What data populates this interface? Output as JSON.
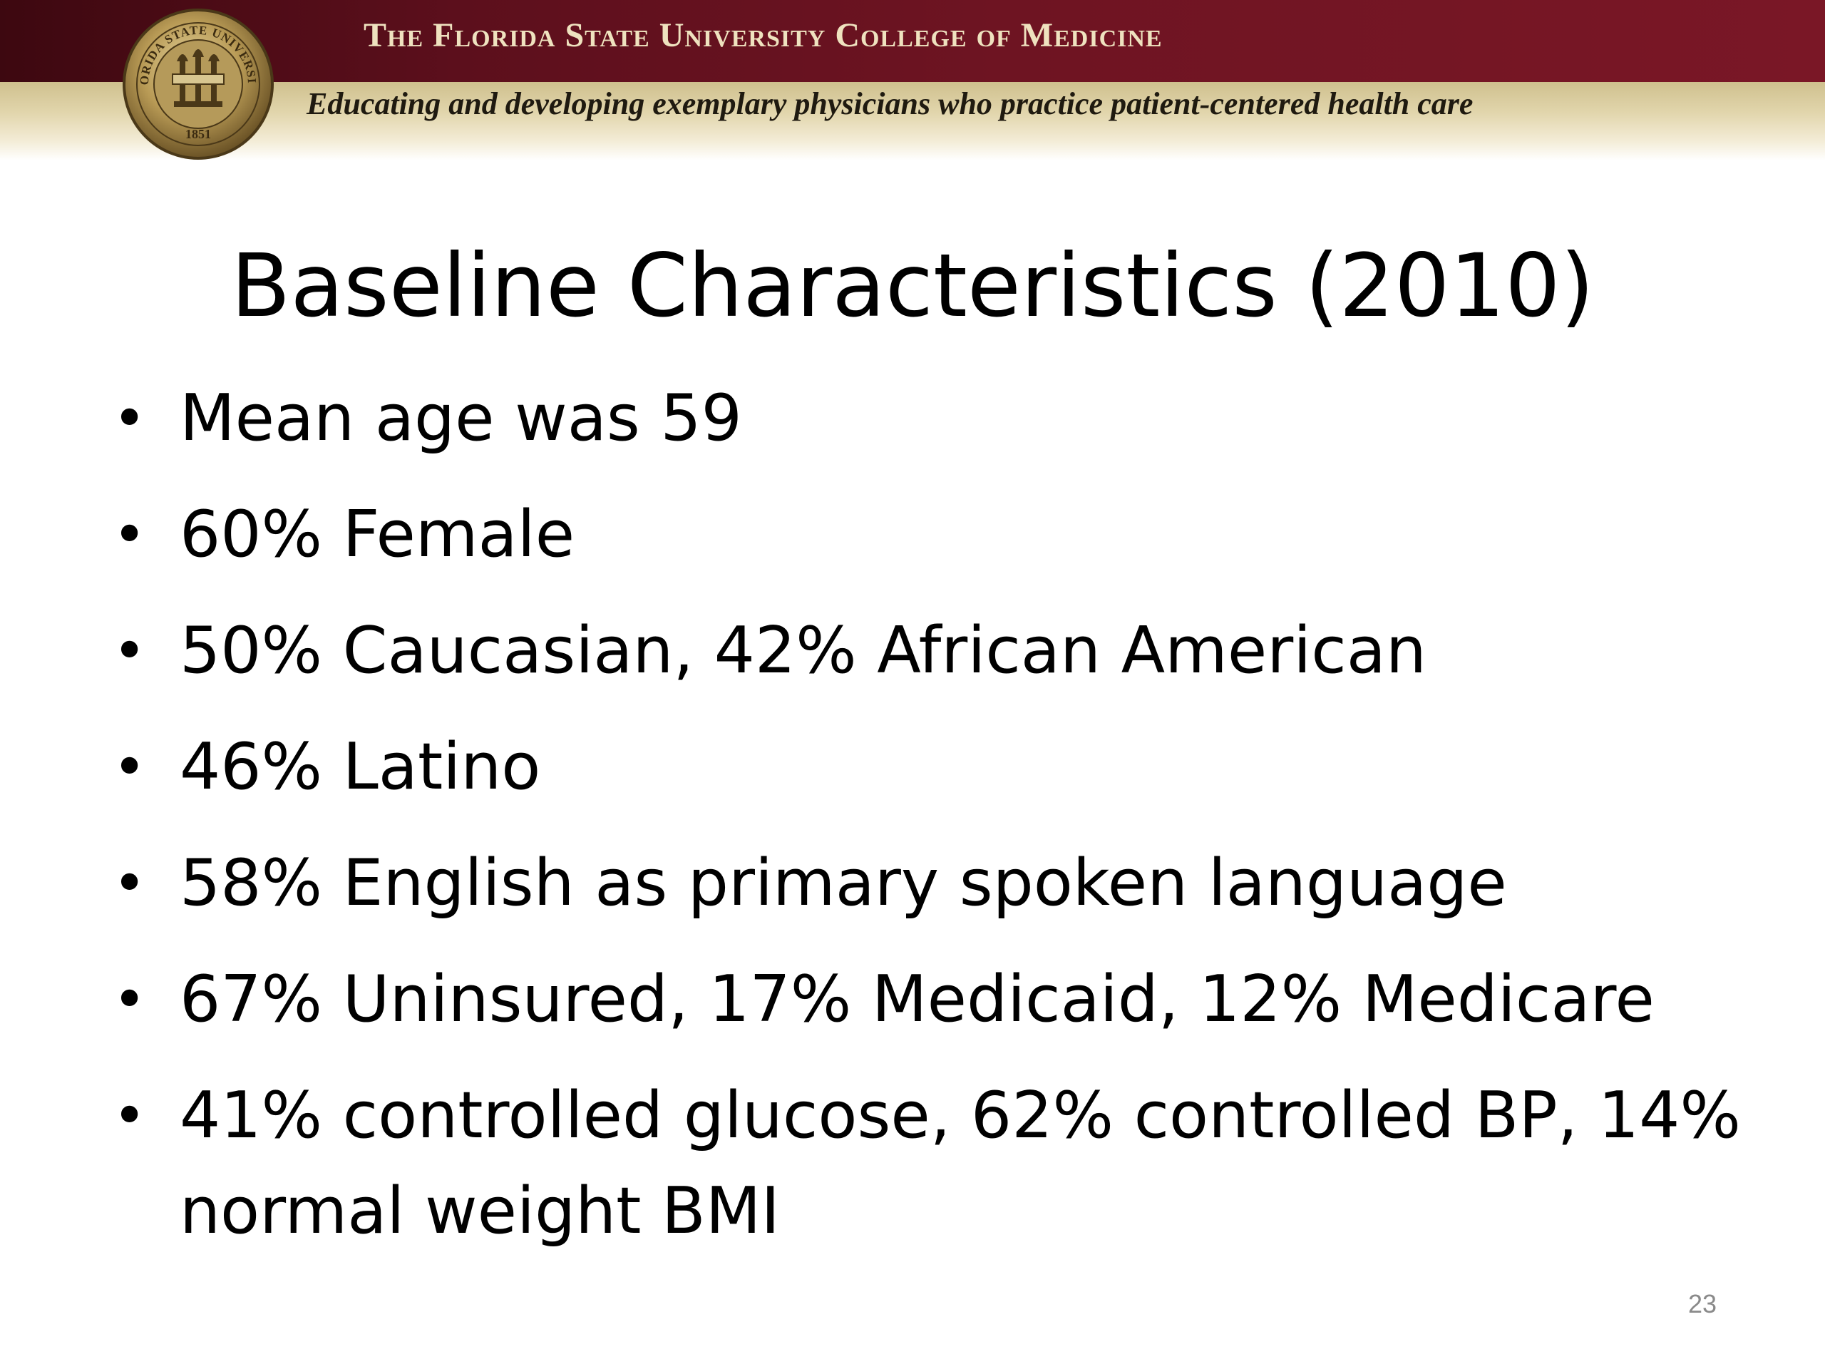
{
  "header": {
    "institution": "The Florida State University College of Medicine",
    "tagline": "Educating and developing exemplary physicians who practice patient-centered health care",
    "seal": {
      "icon": "university-seal-icon",
      "text_top": "FLORIDA STATE UNIVERSITY",
      "year": "1851"
    },
    "colors": {
      "garnet": "#6e1422",
      "gold": "#cfc08e"
    }
  },
  "slide": {
    "title": "Baseline Characteristics (2010)",
    "bullets": [
      "Mean age was 59",
      "60% Female",
      "50% Caucasian, 42% African American",
      "46% Latino",
      "58% English as primary spoken language",
      "67% Uninsured, 17% Medicaid, 12% Medicare",
      "41% controlled glucose, 62% controlled BP, 14% normal weight BMI"
    ],
    "bullet_char": "•",
    "page_number": "23"
  }
}
